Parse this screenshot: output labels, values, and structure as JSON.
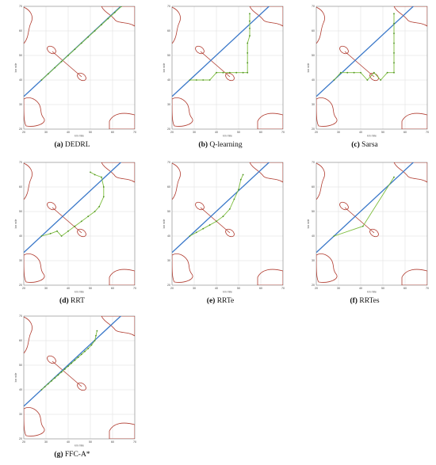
{
  "chart_data": [
    {
      "type": "line",
      "panel_label": "(a)",
      "caption": "DEDRL",
      "xlabel": "km mile",
      "ylabel": "km mile",
      "xlim": [
        20,
        70
      ],
      "ylim": [
        20,
        70
      ],
      "xticks": [
        20,
        30,
        40,
        50,
        60,
        70
      ],
      "yticks": [
        20,
        30,
        40,
        50,
        60,
        70
      ],
      "grid": true,
      "path": {
        "x": [
          28,
          31,
          34,
          37,
          40,
          43,
          46,
          49,
          52,
          55,
          58,
          61,
          64
        ],
        "y": [
          40,
          42.5,
          45,
          47.5,
          50,
          52.5,
          55,
          57.5,
          60,
          62.5,
          65,
          67.5,
          70
        ]
      }
    },
    {
      "type": "line",
      "panel_label": "(b)",
      "caption": "Q-learning",
      "xlabel": "km mile",
      "ylabel": "km mile",
      "xlim": [
        20,
        70
      ],
      "ylim": [
        20,
        70
      ],
      "xticks": [
        20,
        30,
        40,
        50,
        60,
        70
      ],
      "yticks": [
        20,
        30,
        40,
        50,
        60,
        70
      ],
      "grid": true,
      "path": {
        "x": [
          28,
          31,
          34,
          37,
          40,
          43,
          46,
          49,
          52,
          54,
          54,
          54,
          54,
          55,
          55,
          55,
          55
        ],
        "y": [
          40,
          40,
          40,
          40,
          43,
          43,
          43,
          43,
          43,
          43,
          47,
          51,
          55,
          58,
          61,
          64,
          67
        ]
      }
    },
    {
      "type": "line",
      "panel_label": "(c)",
      "caption": "Sarsa",
      "xlabel": "km mile",
      "ylabel": "km mile",
      "xlim": [
        20,
        70
      ],
      "ylim": [
        20,
        70
      ],
      "xticks": [
        20,
        30,
        40,
        50,
        60,
        70
      ],
      "yticks": [
        20,
        30,
        40,
        50,
        60,
        70
      ],
      "grid": true,
      "path": {
        "x": [
          28,
          31,
          34,
          37,
          40,
          43,
          46,
          49,
          52,
          55,
          55,
          55,
          55,
          55,
          55,
          55
        ],
        "y": [
          40,
          43,
          43,
          43,
          43,
          40,
          43,
          40,
          43,
          43,
          47,
          51,
          55,
          59,
          63,
          67
        ]
      }
    },
    {
      "type": "line",
      "panel_label": "(d)",
      "caption": "RRT",
      "xlabel": "km mile",
      "ylabel": "km mile",
      "xlim": [
        20,
        70
      ],
      "ylim": [
        20,
        70
      ],
      "xticks": [
        20,
        30,
        40,
        50,
        60,
        70
      ],
      "yticks": [
        20,
        30,
        40,
        50,
        60,
        70
      ],
      "grid": true,
      "path": {
        "x": [
          28,
          32,
          35,
          37,
          40,
          43,
          46,
          49,
          52,
          54,
          56,
          56,
          55,
          52,
          50
        ],
        "y": [
          40,
          41,
          42,
          40,
          42,
          44,
          46,
          48,
          50,
          52,
          56,
          60,
          64,
          65,
          66
        ]
      }
    },
    {
      "type": "line",
      "panel_label": "(e)",
      "caption": "RRTe",
      "xlabel": "km mile",
      "ylabel": "km mile",
      "xlim": [
        20,
        70
      ],
      "ylim": [
        20,
        70
      ],
      "xticks": [
        20,
        30,
        40,
        50,
        60,
        70
      ],
      "yticks": [
        20,
        30,
        40,
        50,
        60,
        70
      ],
      "grid": true,
      "path": {
        "x": [
          28,
          31,
          34,
          37,
          40,
          43,
          46,
          48,
          50,
          51,
          52
        ],
        "y": [
          40,
          41.5,
          43,
          44.5,
          46,
          48,
          51,
          55,
          59,
          63,
          65
        ]
      }
    },
    {
      "type": "line",
      "panel_label": "(f)",
      "caption": "RRTes",
      "xlabel": "km mile",
      "ylabel": "km mile",
      "xlim": [
        20,
        70
      ],
      "ylim": [
        20,
        70
      ],
      "xticks": [
        20,
        30,
        40,
        50,
        60,
        70
      ],
      "yticks": [
        20,
        30,
        40,
        50,
        60,
        70
      ],
      "grid": true,
      "path": {
        "x": [
          28,
          41,
          55
        ],
        "y": [
          40,
          44,
          64
        ]
      }
    },
    {
      "type": "line",
      "panel_label": "(g)",
      "caption": "FFC-A*",
      "xlabel": "km mile",
      "ylabel": "km mile",
      "xlim": [
        20,
        70
      ],
      "ylim": [
        20,
        70
      ],
      "xticks": [
        20,
        30,
        40,
        50,
        60,
        70
      ],
      "yticks": [
        20,
        30,
        40,
        50,
        60,
        70
      ],
      "grid": true,
      "path": {
        "x": [
          28,
          29.5,
          31,
          32.5,
          34,
          35.5,
          37,
          38.5,
          40,
          41.5,
          43,
          44.5,
          46,
          47.5,
          49,
          50.5,
          52,
          52.5,
          53
        ],
        "y": [
          40,
          41.2,
          42.4,
          43.6,
          44.8,
          46,
          47.2,
          48.4,
          49.6,
          50.8,
          52,
          53.2,
          54.4,
          55.6,
          56.8,
          58.2,
          60,
          62,
          64
        ]
      }
    }
  ],
  "colors": {
    "path": "#7cbd3c",
    "straight_line": "#3a78c9",
    "obstacle": "#b03a2e",
    "grid": "#dddddd"
  }
}
